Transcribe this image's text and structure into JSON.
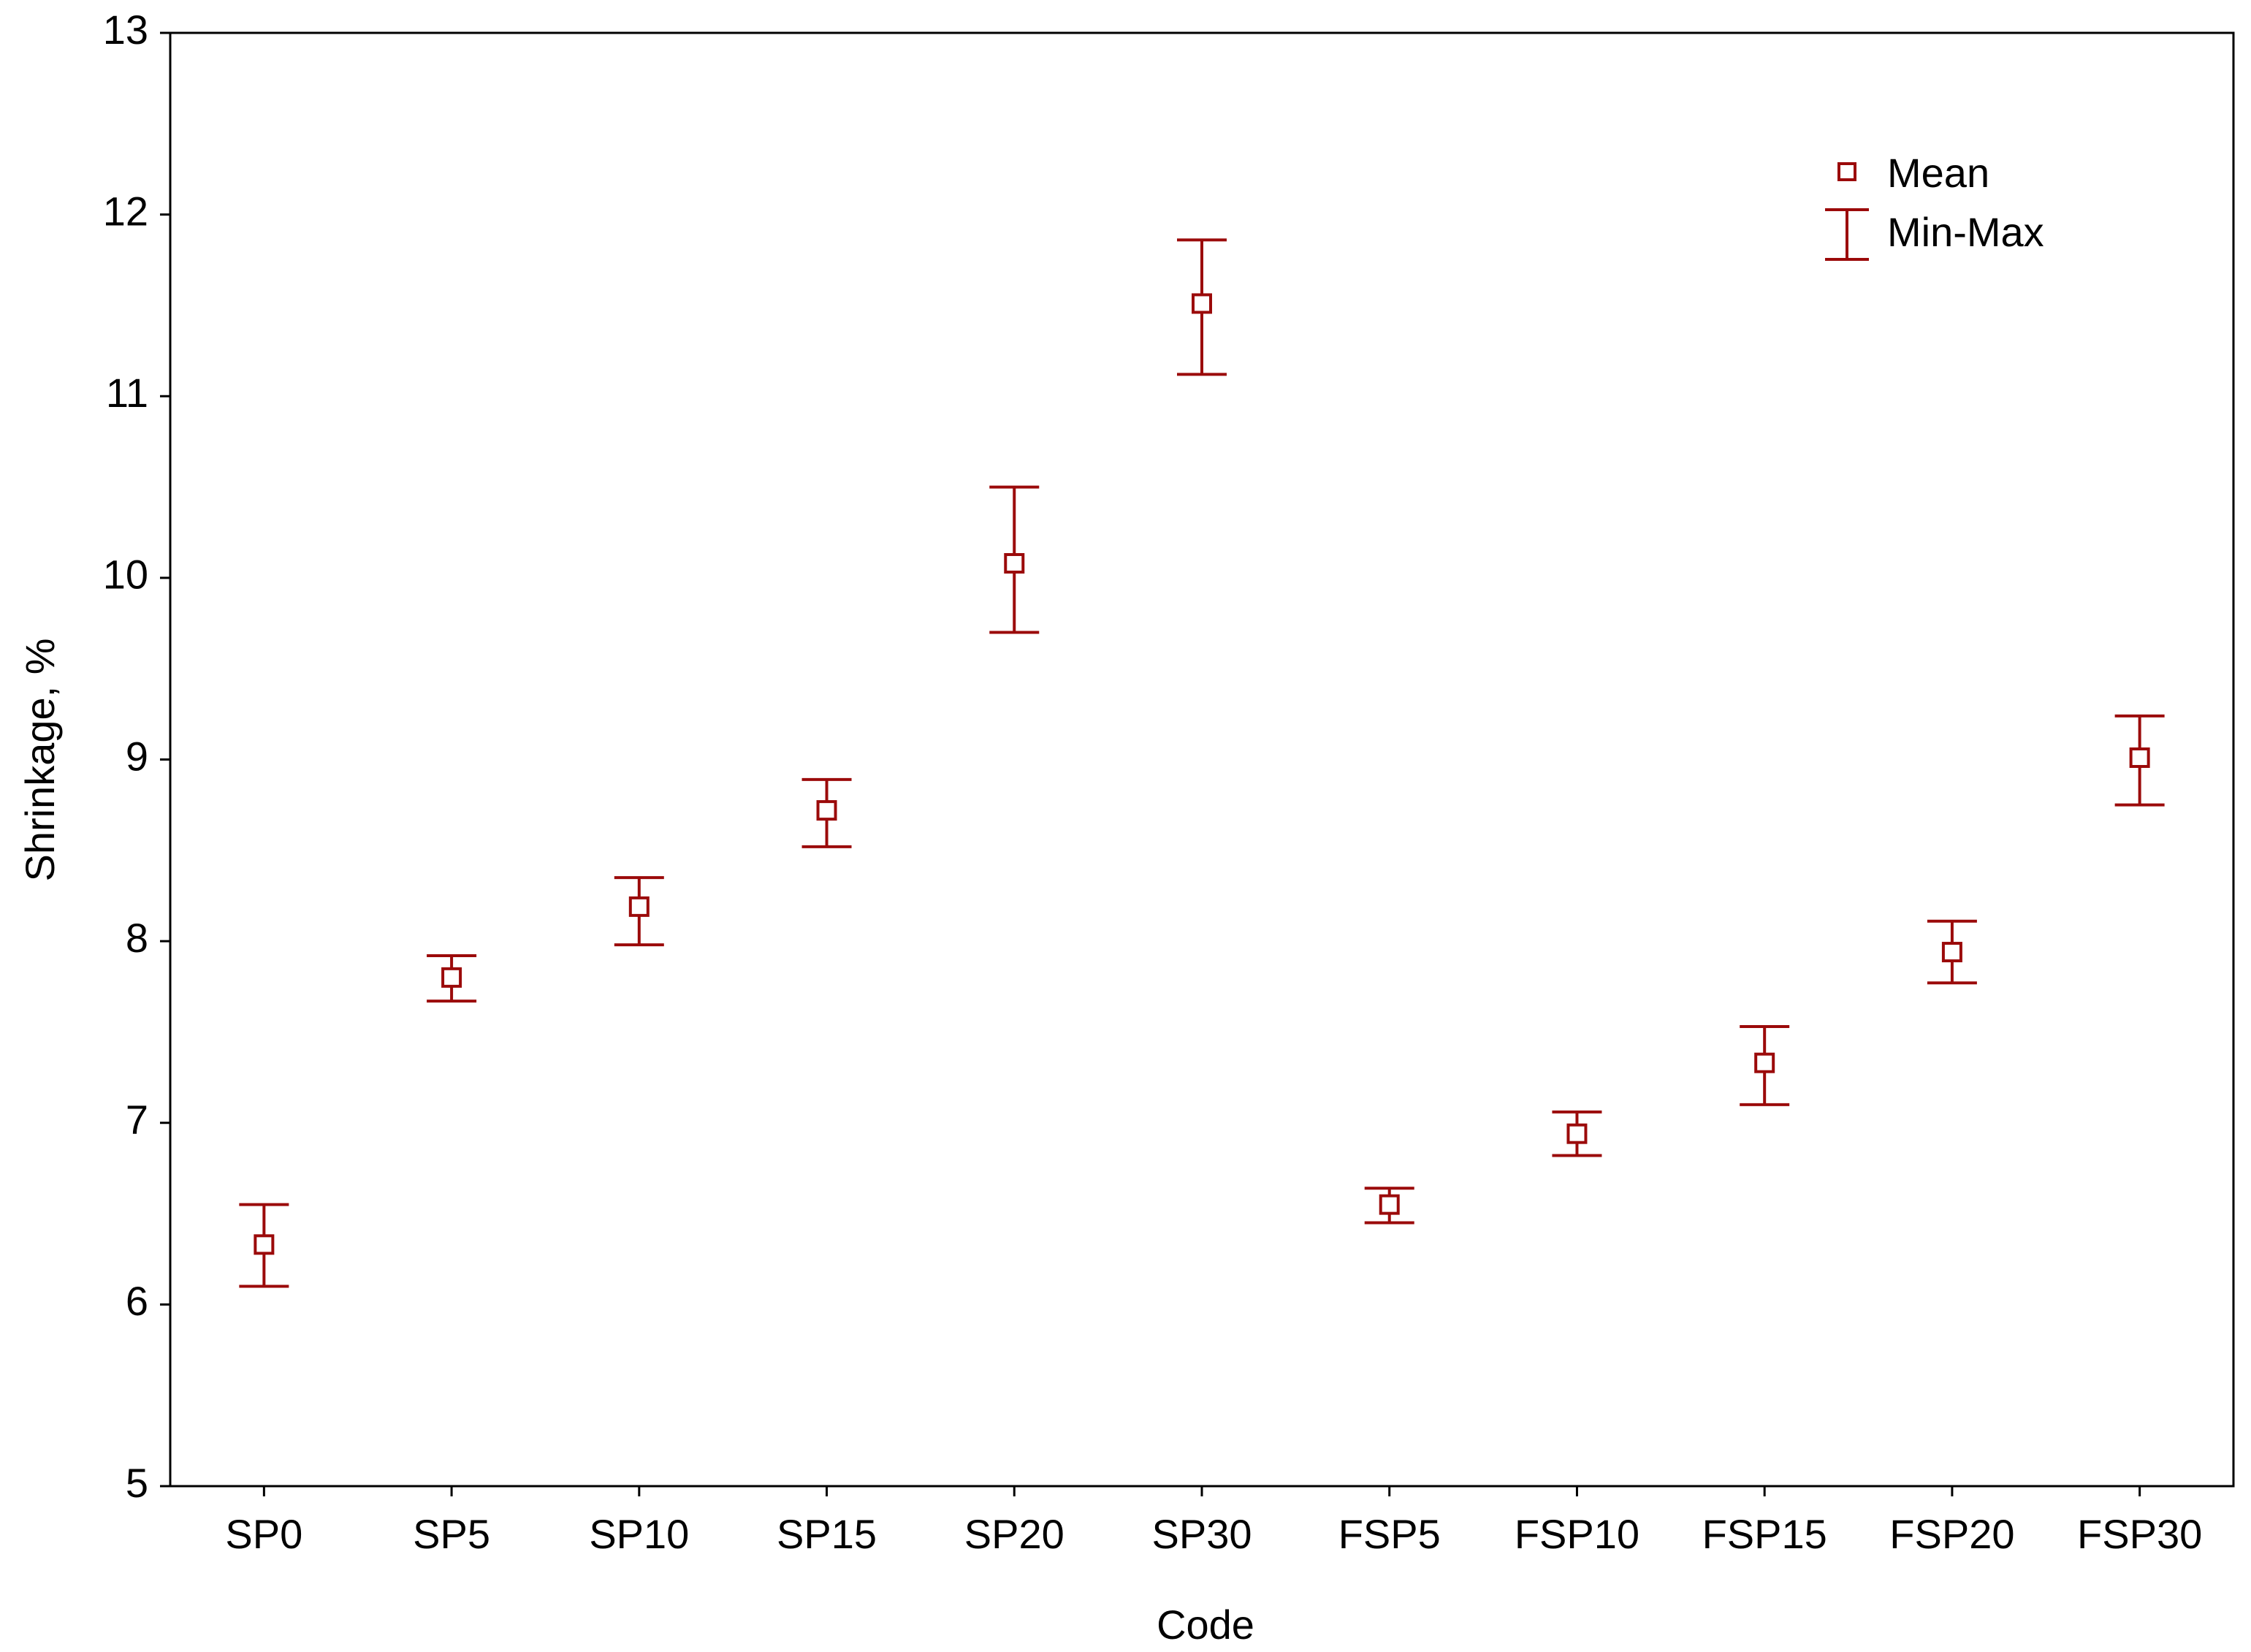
{
  "chart_data": {
    "type": "errorbar",
    "x_label": "Code",
    "y_label": "Shrinkage, %",
    "categories": [
      "SP0",
      "SP5",
      "SP10",
      "SP15",
      "SP20",
      "SP30",
      "FSP5",
      "FSP10",
      "FSP15",
      "FSP20",
      "FSP30"
    ],
    "series": [
      {
        "name": "Mean",
        "range_name": "Min-Max",
        "color": "#9b0a0a",
        "values": [
          6.33,
          7.8,
          8.19,
          8.72,
          10.08,
          11.51,
          6.55,
          6.94,
          7.33,
          7.94,
          9.01
        ],
        "min": [
          6.1,
          7.67,
          7.98,
          8.52,
          9.7,
          11.12,
          6.45,
          6.82,
          7.1,
          7.77,
          8.75
        ],
        "max": [
          6.55,
          7.92,
          8.35,
          8.89,
          10.5,
          11.86,
          6.64,
          7.06,
          7.53,
          8.11,
          9.24
        ]
      }
    ],
    "ylim": [
      5,
      13
    ],
    "yticks": [
      5,
      6,
      7,
      8,
      9,
      10,
      11,
      12,
      13
    ],
    "grid": false,
    "legend": "top-right"
  }
}
